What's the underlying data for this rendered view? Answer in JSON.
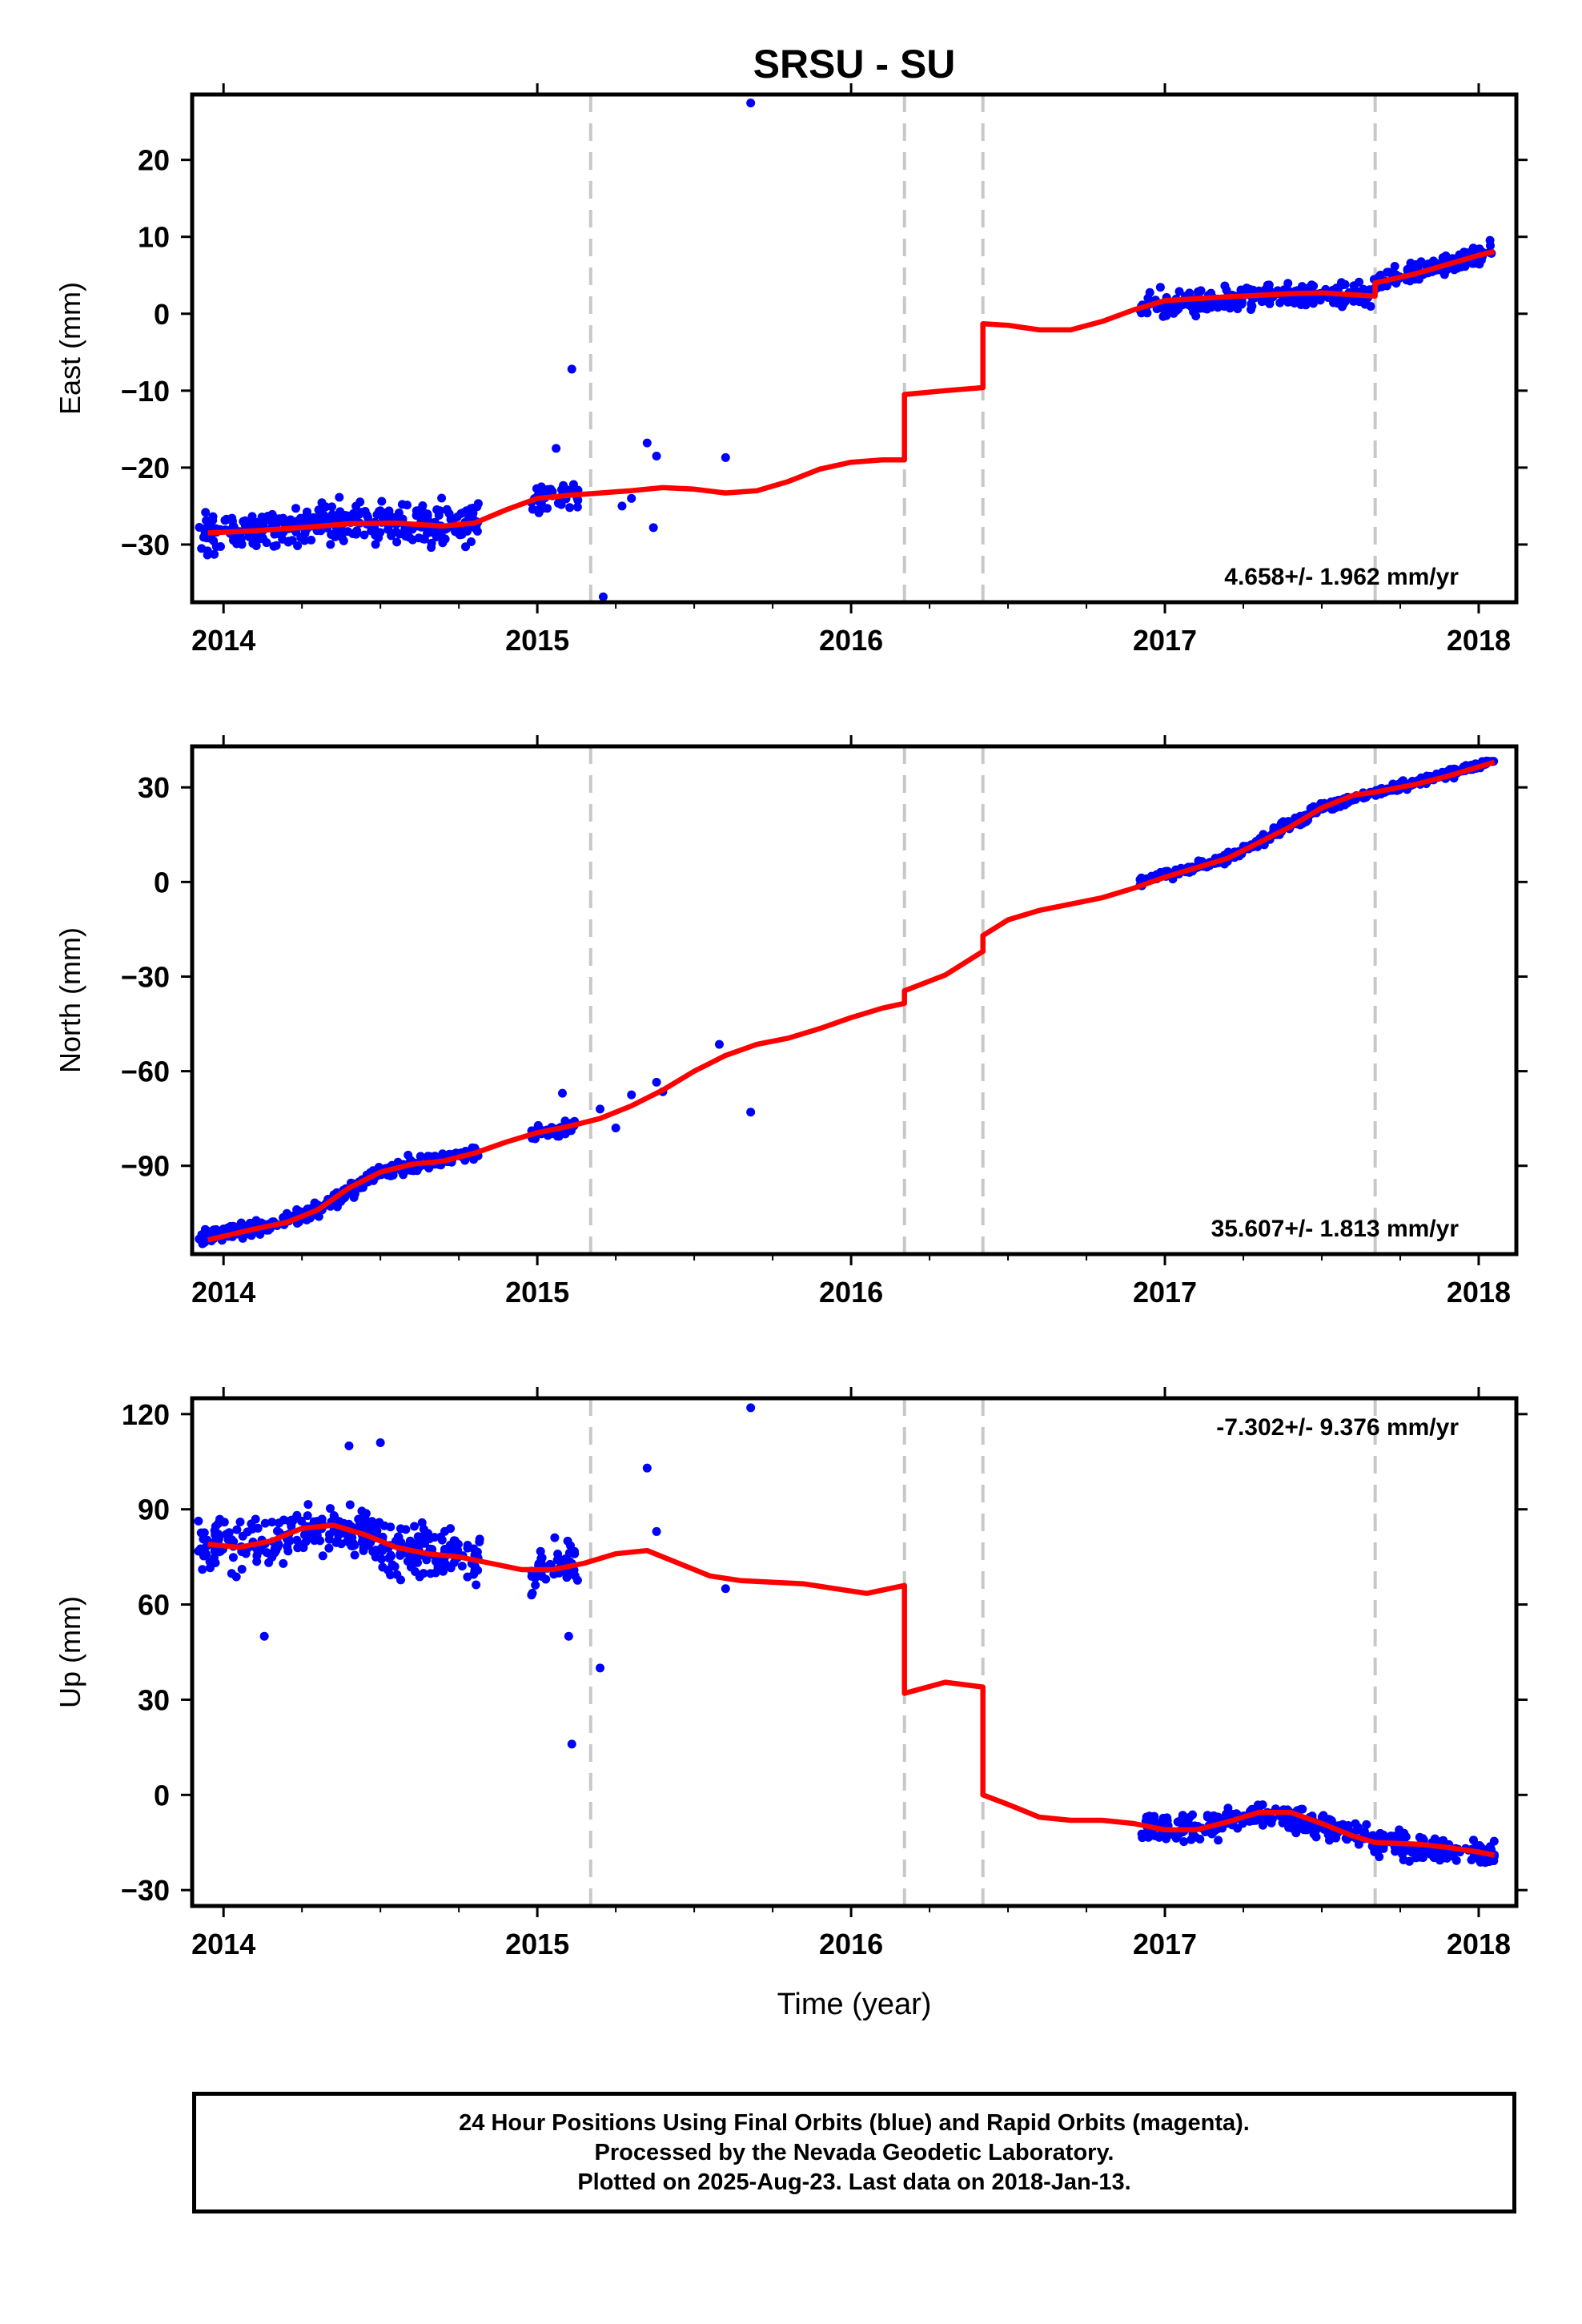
{
  "title": "SRSU - SU",
  "xlabel": "Time (year)",
  "colors": {
    "data": "#0000ff",
    "model": "#ff0000",
    "offset_line": "#c8c8c8",
    "axes": "#000000"
  },
  "offset_epochs": [
    2015.17,
    2016.17,
    2016.42,
    2017.67
  ],
  "chart_data": [
    {
      "type": "scatter",
      "ylabel": "East (mm)",
      "xlim": [
        2013.9,
        2018.12
      ],
      "ylim": [
        -37.5,
        28.5
      ],
      "xticks": [
        2014,
        2015,
        2016,
        2017,
        2018
      ],
      "yticks": [
        -30,
        -20,
        -10,
        0,
        10,
        20
      ],
      "rate_label": "4.658+/- 1.962 mm/yr",
      "rate_position": "bottom-right",
      "model_curve": {
        "x": [
          2013.95,
          2014.1,
          2014.25,
          2014.4,
          2014.55,
          2014.7,
          2014.8,
          2014.9,
          2015.0,
          2015.1,
          2015.2,
          2015.3,
          2015.4,
          2015.5,
          2015.6,
          2015.7,
          2015.8,
          2015.9,
          2016.0,
          2016.1,
          2016.17,
          2016.17,
          2016.3,
          2016.42,
          2016.42,
          2016.5,
          2016.6,
          2016.7,
          2016.8,
          2016.9,
          2017.0,
          2017.2,
          2017.4,
          2017.5,
          2017.67,
          2017.67,
          2017.8,
          2018.0,
          2018.05
        ],
        "y": [
          -28.5,
          -28.2,
          -27.8,
          -27.3,
          -27.2,
          -27.6,
          -27.2,
          -25.5,
          -24.0,
          -23.6,
          -23.3,
          -23.0,
          -22.6,
          -22.8,
          -23.3,
          -23.0,
          -21.8,
          -20.2,
          -19.3,
          -19.0,
          -19.0,
          -10.5,
          -10.0,
          -9.6,
          -1.3,
          -1.5,
          -2.1,
          -2.1,
          -1.0,
          0.5,
          1.7,
          2.2,
          2.6,
          2.7,
          2.3,
          4.0,
          5.2,
          7.6,
          8.1
        ]
      },
      "point_groups": [
        {
          "x_range": [
            2013.92,
            2014.82
          ],
          "trend": [
            [
              2013.92,
              -28.5
            ],
            [
              2014.4,
              -27.3
            ],
            [
              2014.82,
              -27.2
            ]
          ],
          "spread": 2.2,
          "count": 330
        },
        {
          "x_range": [
            2014.98,
            2015.13
          ],
          "trend": [
            [
              2014.98,
              -24.0
            ],
            [
              2015.13,
              -23.6
            ]
          ],
          "spread": 1.8,
          "count": 45
        },
        {
          "x_range": [
            2016.92,
            2018.05
          ],
          "trend": [
            [
              2016.92,
              1.2
            ],
            [
              2017.5,
              2.7
            ],
            [
              2017.66,
              2.5
            ],
            [
              2017.68,
              4.0
            ],
            [
              2018.05,
              8.1
            ]
          ],
          "spread": 1.2,
          "count": 400
        }
      ],
      "isolated_points": {
        "x": [
          2015.11,
          2015.21,
          2015.35,
          2015.38,
          2015.6,
          2015.68,
          2015.06,
          2015.27,
          2015.3,
          2015.37
        ],
        "y": [
          -7.2,
          -36.8,
          -16.8,
          -18.5,
          -18.7,
          27.4,
          -17.5,
          -25.0,
          -24.0,
          -27.8
        ]
      }
    },
    {
      "type": "scatter",
      "ylabel": "North (mm)",
      "xlim": [
        2013.9,
        2018.12
      ],
      "ylim": [
        -118,
        43
      ],
      "xticks": [
        2014,
        2015,
        2016,
        2017,
        2018
      ],
      "yticks": [
        -90,
        -60,
        -30,
        0,
        30
      ],
      "rate_label": "35.607+/- 1.813 mm/yr",
      "rate_position": "bottom-right",
      "model_curve": {
        "x": [
          2013.95,
          2014.1,
          2014.2,
          2014.3,
          2014.4,
          2014.5,
          2014.6,
          2014.7,
          2014.8,
          2014.9,
          2015.0,
          2015.1,
          2015.2,
          2015.3,
          2015.4,
          2015.5,
          2015.6,
          2015.7,
          2015.8,
          2015.9,
          2016.0,
          2016.1,
          2016.17,
          2016.17,
          2016.3,
          2016.42,
          2016.42,
          2016.5,
          2016.6,
          2016.7,
          2016.8,
          2016.9,
          2017.0,
          2017.1,
          2017.2,
          2017.3,
          2017.4,
          2017.5,
          2017.6,
          2017.67,
          2017.8,
          2017.9,
          2018.0,
          2018.05
        ],
        "y": [
          -113.5,
          -110.0,
          -108.0,
          -104.0,
          -97.0,
          -92.0,
          -89.5,
          -88.5,
          -86.0,
          -82.5,
          -79.5,
          -77.5,
          -75.0,
          -71.0,
          -66.0,
          -60.0,
          -55.0,
          -51.5,
          -49.5,
          -46.5,
          -43.0,
          -40.0,
          -38.5,
          -34.5,
          -29.5,
          -22.0,
          -17.0,
          -12.0,
          -9.0,
          -7.0,
          -5.0,
          -2.0,
          1.5,
          4.5,
          7.5,
          12.5,
          17.5,
          23.5,
          27.5,
          28.5,
          31.0,
          33.5,
          36.5,
          38.0
        ]
      },
      "point_groups": [
        {
          "x_range": [
            2013.92,
            2014.82
          ],
          "trend": [
            [
              2013.92,
              -113.5
            ],
            [
              2014.1,
              -110.0
            ],
            [
              2014.3,
              -104.0
            ],
            [
              2014.5,
              -92.0
            ],
            [
              2014.82,
              -85.5
            ]
          ],
          "spread": 2.0,
          "count": 330
        },
        {
          "x_range": [
            2014.98,
            2015.13
          ],
          "trend": [
            [
              2014.98,
              -80.0
            ],
            [
              2015.13,
              -77.0
            ]
          ],
          "spread": 2.0,
          "count": 45
        },
        {
          "x_range": [
            2016.92,
            2018.05
          ],
          "trend": [
            [
              2016.92,
              0.0
            ],
            [
              2017.2,
              7.5
            ],
            [
              2017.5,
              23.5
            ],
            [
              2017.67,
              28.5
            ],
            [
              2018.05,
              38.0
            ]
          ],
          "spread": 1.3,
          "count": 400
        }
      ],
      "isolated_points": {
        "x": [
          2015.2,
          2015.25,
          2015.38,
          2015.4,
          2015.58,
          2015.68,
          2015.08,
          2015.3
        ],
        "y": [
          -72.0,
          -78.0,
          -63.5,
          -66.5,
          -51.5,
          -73.0,
          -67.0,
          -67.5
        ]
      }
    },
    {
      "type": "scatter",
      "ylabel": "Up (mm)",
      "xlim": [
        2013.9,
        2018.12
      ],
      "ylim": [
        -35,
        125
      ],
      "xticks": [
        2014,
        2015,
        2016,
        2017,
        2018
      ],
      "yticks": [
        -30,
        0,
        30,
        60,
        90,
        120
      ],
      "rate_label": "-7.302+/- 9.376 mm/yr",
      "rate_position": "top-right",
      "model_curve": {
        "x": [
          2013.95,
          2014.05,
          2014.15,
          2014.25,
          2014.35,
          2014.45,
          2014.55,
          2014.65,
          2014.75,
          2014.85,
          2014.95,
          2015.05,
          2015.15,
          2015.25,
          2015.35,
          2015.45,
          2015.55,
          2015.65,
          2015.75,
          2015.85,
          2015.95,
          2016.05,
          2016.17,
          2016.17,
          2016.3,
          2016.42,
          2016.42,
          2016.5,
          2016.6,
          2016.7,
          2016.8,
          2016.9,
          2017.0,
          2017.1,
          2017.2,
          2017.3,
          2017.4,
          2017.5,
          2017.6,
          2017.67,
          2017.8,
          2017.9,
          2018.0,
          2018.05
        ],
        "y": [
          79,
          78,
          80,
          84,
          85,
          82,
          78,
          76,
          75,
          73,
          71,
          71,
          73,
          76,
          77,
          73,
          69,
          67.5,
          67,
          66.5,
          65,
          63.5,
          66,
          32,
          35.5,
          34,
          0,
          -3,
          -7,
          -8,
          -8,
          -9,
          -11,
          -11,
          -8.5,
          -5.5,
          -5.5,
          -9,
          -13,
          -15,
          -15.5,
          -16.5,
          -18,
          -19
        ]
      },
      "point_groups": [
        {
          "x_range": [
            2013.92,
            2014.82
          ],
          "trend": [
            [
              2013.92,
              79
            ],
            [
              2014.15,
              80
            ],
            [
              2014.35,
              85
            ],
            [
              2014.55,
              78
            ],
            [
              2014.82,
              74
            ]
          ],
          "spread": 7.0,
          "count": 330
        },
        {
          "x_range": [
            2014.98,
            2015.13
          ],
          "trend": [
            [
              2014.98,
              71
            ],
            [
              2015.13,
              72
            ]
          ],
          "spread": 6.0,
          "count": 45
        },
        {
          "x_range": [
            2016.92,
            2018.05
          ],
          "trend": [
            [
              2016.92,
              -10
            ],
            [
              2017.1,
              -11
            ],
            [
              2017.3,
              -5.5
            ],
            [
              2017.5,
              -9
            ],
            [
              2017.67,
              -15
            ],
            [
              2018.05,
              -19
            ]
          ],
          "spread": 3.5,
          "count": 400
        }
      ],
      "isolated_points": {
        "x": [
          2015.11,
          2015.2,
          2015.35,
          2015.6,
          2015.68,
          2014.5,
          2014.4,
          2014.13,
          2015.38,
          2015.1
        ],
        "y": [
          16,
          40,
          103,
          65,
          122,
          111,
          110,
          50,
          83,
          50
        ]
      }
    }
  ],
  "caption": {
    "line1": "24 Hour Positions Using Final Orbits (blue) and Rapid Orbits (magenta).",
    "line2": "Processed by the Nevada Geodetic Laboratory.",
    "line3": "Plotted on 2025-Aug-23. Last data on 2018-Jan-13."
  }
}
